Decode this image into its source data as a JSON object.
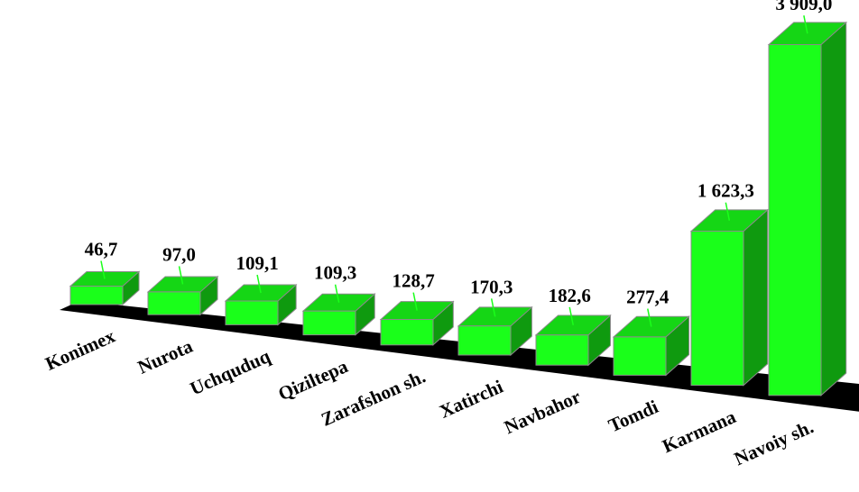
{
  "chart_data": {
    "type": "bar",
    "style": "3d",
    "categories": [
      "Konimex",
      "Nurota",
      "Uchquduq",
      "Qiziltepa",
      "Zarafshon sh.",
      "Xatirchi",
      "Navbahor",
      "Tomdi",
      "Karmana",
      "Navoiy sh."
    ],
    "values": [
      46.7,
      97.0,
      109.1,
      109.3,
      128.7,
      170.3,
      182.6,
      277.4,
      1623.3,
      3909.0
    ],
    "value_labels": [
      "46,7",
      "97,0",
      "109,1",
      "109,3",
      "128,7",
      "170,3",
      "182,6",
      "277,4",
      "1 623,3",
      "3 909,0"
    ],
    "title": "",
    "xlabel": "",
    "ylabel": "",
    "grid": false,
    "legend": "none",
    "colors": {
      "bar_front": "#1aff1a",
      "bar_top": "#15d615",
      "bar_side": "#0f9a0f",
      "bar_outline": "#8a8a8a",
      "floor": "#000000",
      "leader_line": "#1aff1a"
    }
  }
}
